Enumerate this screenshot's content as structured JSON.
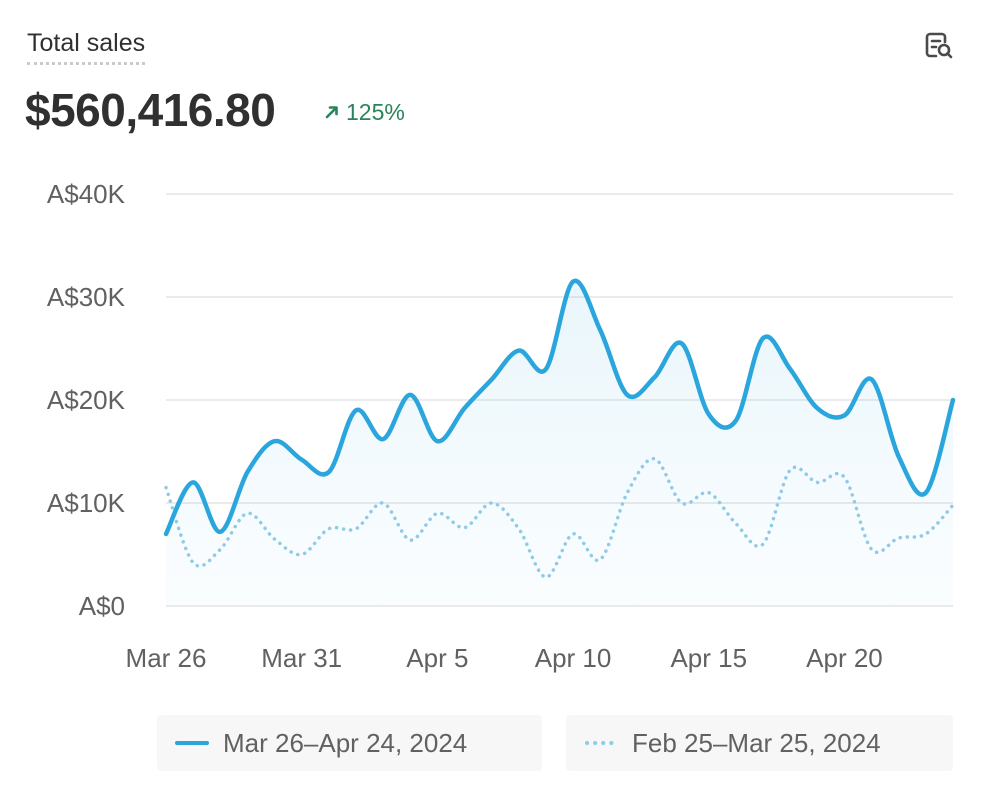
{
  "card": {
    "title": "Total sales",
    "total_value": "$560,416.80",
    "delta_value": "125%",
    "delta_icon": "arrow-up-right-icon",
    "report_icon": "view-report-icon"
  },
  "colors": {
    "current": "#2ba6dd",
    "previous": "#8fcbe6",
    "positive": "#29845a",
    "grid": "#ebebeb",
    "axis_text": "#616161"
  },
  "chart_data": {
    "type": "line",
    "title": "Total sales",
    "yticks": [
      "A$0",
      "A$10K",
      "A$20K",
      "A$30K",
      "A$40K"
    ],
    "ylim": [
      0,
      40000
    ],
    "xticks": [
      "Mar 26",
      "Mar 31",
      "Apr 5",
      "Apr 10",
      "Apr 15",
      "Apr 20"
    ],
    "grid": true,
    "legend_position": "bottom",
    "series": [
      {
        "name": "Mar 26–Apr 24, 2024",
        "style": "solid",
        "x": [
          "Mar 26",
          "Mar 27",
          "Mar 28",
          "Mar 29",
          "Mar 30",
          "Mar 31",
          "Apr 1",
          "Apr 2",
          "Apr 3",
          "Apr 4",
          "Apr 5",
          "Apr 6",
          "Apr 7",
          "Apr 8",
          "Apr 9",
          "Apr 10",
          "Apr 11",
          "Apr 12",
          "Apr 13",
          "Apr 14",
          "Apr 15",
          "Apr 16",
          "Apr 17",
          "Apr 18",
          "Apr 19",
          "Apr 20",
          "Apr 21",
          "Apr 22",
          "Apr 23",
          "Apr 24"
        ],
        "values": [
          7000,
          12000,
          7200,
          13000,
          16000,
          14200,
          13000,
          19000,
          16200,
          20500,
          16000,
          19200,
          22000,
          24800,
          23000,
          31500,
          26800,
          20500,
          22200,
          25500,
          18600,
          18000,
          26000,
          23000,
          19200,
          18500,
          22000,
          14500,
          11000,
          20000
        ]
      },
      {
        "name": "Feb 25–Mar 25, 2024",
        "style": "dotted",
        "x": [
          "Feb 25",
          "Feb 26",
          "Feb 27",
          "Feb 28",
          "Feb 29",
          "Mar 1",
          "Mar 2",
          "Mar 3",
          "Mar 4",
          "Mar 5",
          "Mar 6",
          "Mar 7",
          "Mar 8",
          "Mar 9",
          "Mar 10",
          "Mar 11",
          "Mar 12",
          "Mar 13",
          "Mar 14",
          "Mar 15",
          "Mar 16",
          "Mar 17",
          "Mar 18",
          "Mar 19",
          "Mar 20",
          "Mar 21",
          "Mar 22",
          "Mar 23",
          "Mar 24",
          "Mar 25"
        ],
        "values": [
          11500,
          4200,
          5500,
          9000,
          6500,
          5000,
          7500,
          7500,
          10000,
          6400,
          9000,
          7600,
          10000,
          7500,
          2800,
          7000,
          4500,
          11000,
          14300,
          10000,
          11000,
          8000,
          6000,
          13200,
          12000,
          12500,
          5500,
          6600,
          7000,
          9800
        ]
      }
    ]
  }
}
